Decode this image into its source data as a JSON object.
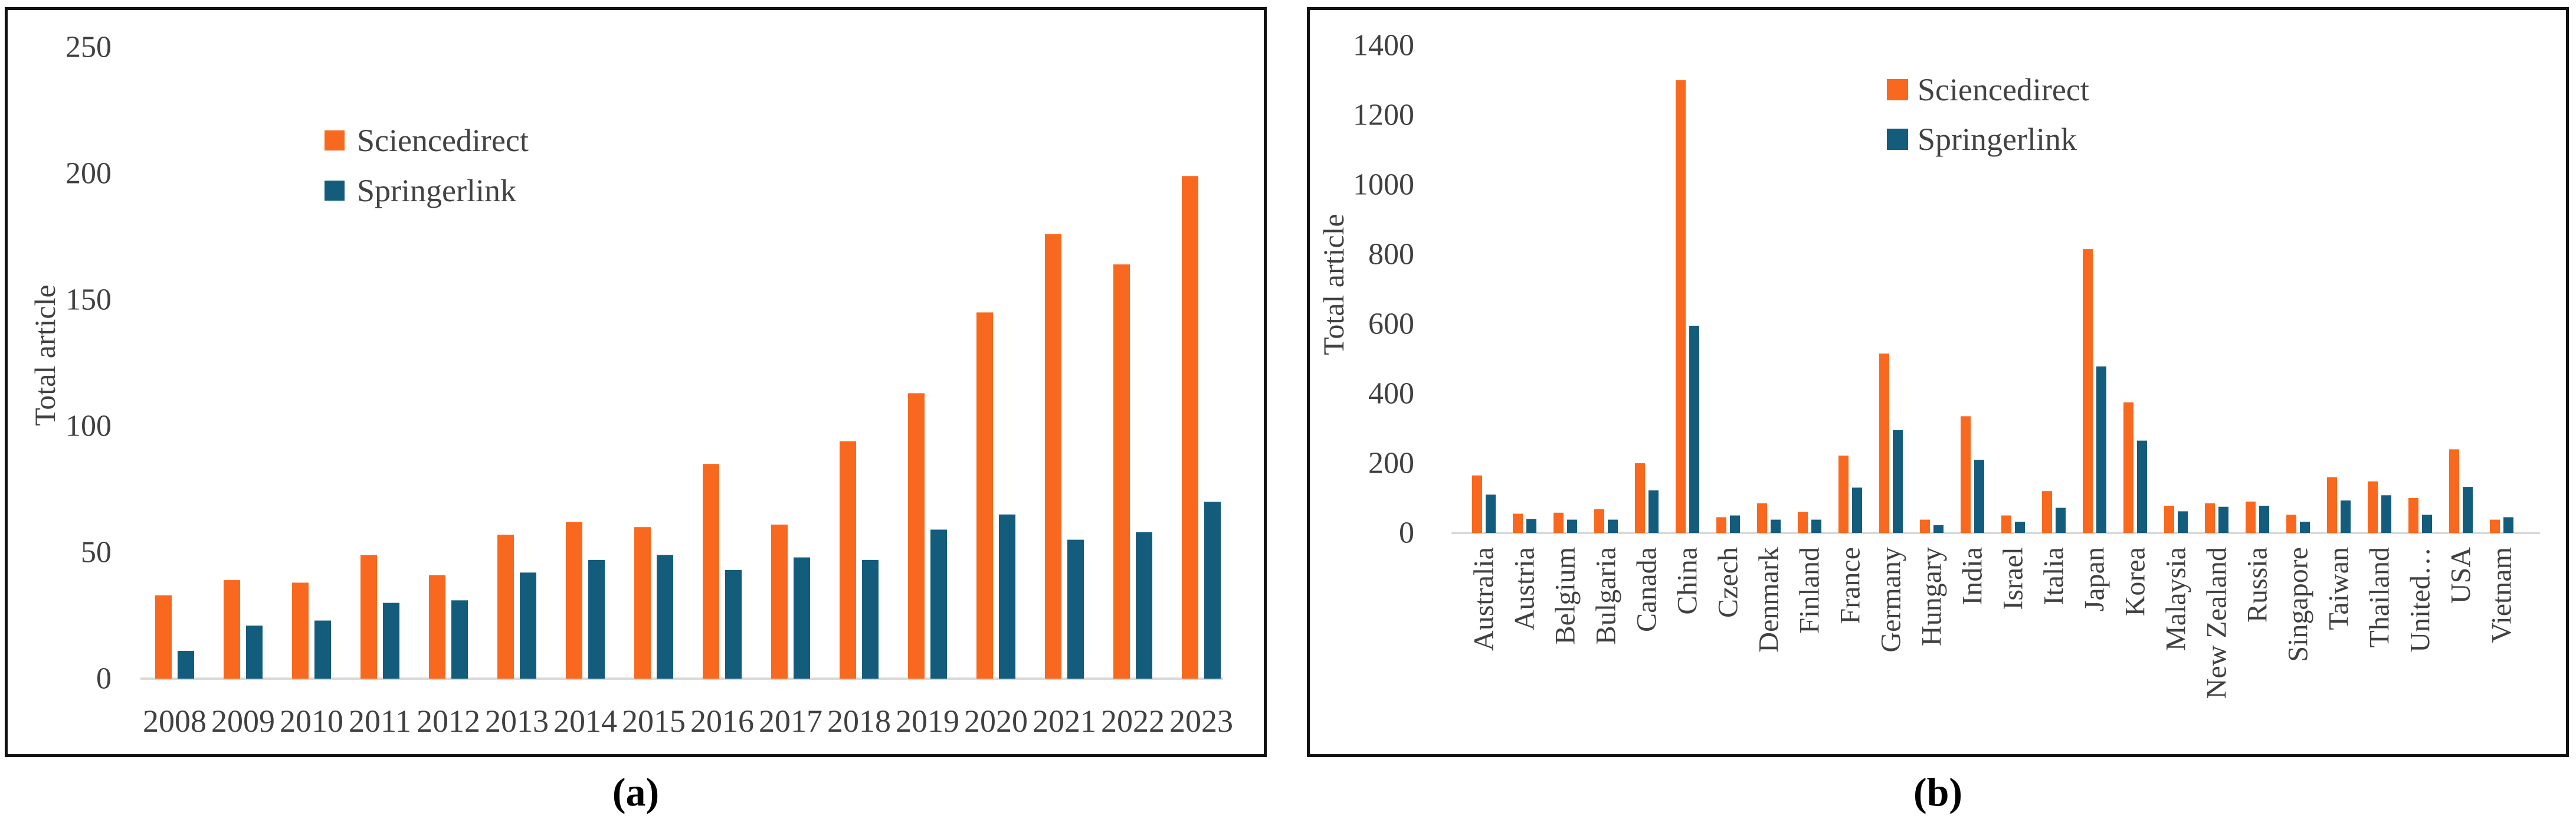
{
  "page": {
    "background": "#ffffff"
  },
  "colors": {
    "sciencedirect": "#F8681E",
    "springerlink": "#145C7C",
    "axis_line": "#D9D9D9",
    "tick_text": "#404040",
    "legend_text": "#424242",
    "caption_text": "#000000",
    "panel_border": "#111111"
  },
  "chart_data": [
    {
      "type": "bar",
      "caption": "(a)",
      "title": "",
      "xlabel": "",
      "ylabel": "Total article",
      "ylim": [
        0,
        250
      ],
      "yticks": [
        0,
        50,
        100,
        150,
        200,
        250
      ],
      "grid": false,
      "legend_position": "upper-left-inside",
      "categories": [
        "2008",
        "2009",
        "2010",
        "2011",
        "2012",
        "2013",
        "2014",
        "2015",
        "2016",
        "2017",
        "2018",
        "2019",
        "2020",
        "2021",
        "2022",
        "2023"
      ],
      "series": [
        {
          "name": "Sciencedirect",
          "color": "#F8681E",
          "values": [
            33,
            39,
            38,
            49,
            41,
            57,
            62,
            60,
            85,
            61,
            94,
            113,
            145,
            176,
            164,
            199
          ]
        },
        {
          "name": "Springerlink",
          "color": "#145C7C",
          "values": [
            11,
            21,
            23,
            30,
            31,
            42,
            47,
            49,
            43,
            48,
            47,
            59,
            65,
            55,
            58,
            70
          ]
        }
      ]
    },
    {
      "type": "bar",
      "caption": "(b)",
      "title": "",
      "xlabel": "",
      "ylabel": "Total article",
      "ylim": [
        0,
        1400
      ],
      "yticks": [
        0,
        200,
        400,
        600,
        800,
        1000,
        1200,
        1400
      ],
      "grid": false,
      "legend_position": "upper-right-inside",
      "categories": [
        "Australia",
        "Austria",
        "Belgium",
        "Bulgaria",
        "Canada",
        "China",
        "Czech",
        "Denmark",
        "Finland",
        "France",
        "Germany",
        "Hungary",
        "India",
        "Israel",
        "Italia",
        "Japan",
        "Korea",
        "Malaysia",
        "New Zealand",
        "Russia",
        "Singapore",
        "Taiwan",
        "Thailand",
        "United…",
        "USA",
        "Vietnam"
      ],
      "series": [
        {
          "name": "Sciencedirect",
          "color": "#F8681E",
          "values": [
            165,
            55,
            58,
            68,
            200,
            1300,
            45,
            85,
            60,
            222,
            515,
            38,
            335,
            50,
            120,
            815,
            375,
            78,
            85,
            90,
            52,
            160,
            148,
            100,
            240,
            38
          ]
        },
        {
          "name": "Springerlink",
          "color": "#145C7C",
          "values": [
            110,
            40,
            38,
            38,
            122,
            595,
            50,
            38,
            38,
            130,
            295,
            22,
            210,
            32,
            72,
            478,
            265,
            62,
            75,
            78,
            32,
            93,
            108,
            52,
            132,
            45
          ]
        }
      ]
    }
  ]
}
